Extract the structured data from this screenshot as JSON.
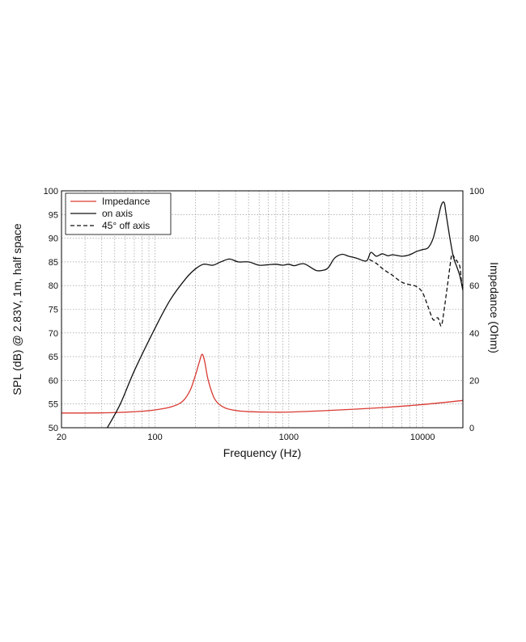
{
  "chart_data": {
    "type": "line",
    "xlabel": "Frequency (Hz)",
    "ylabel_left": "SPL (dB) @ 2.83V, 1m, half space",
    "ylabel_right": "Impedance (Ohm)",
    "x_scale": "log",
    "xlim": [
      20,
      20000
    ],
    "ylim_left": [
      50,
      100
    ],
    "ylim_right": [
      0,
      100
    ],
    "grid": true,
    "legend_position": "top-left",
    "x_ticks": [
      {
        "value": 20,
        "label": "20"
      },
      {
        "value": 100,
        "label": "100"
      },
      {
        "value": 1000,
        "label": "1000"
      },
      {
        "value": 10000,
        "label": "10000"
      }
    ],
    "y_ticks_left": [
      "50",
      "55",
      "60",
      "65",
      "70",
      "75",
      "80",
      "85",
      "90",
      "95",
      "100"
    ],
    "y_ticks_right": [
      "0",
      "20",
      "40",
      "60",
      "80",
      "100"
    ],
    "series": [
      {
        "name": "Impedance",
        "color": "#d93a32",
        "dash": "solid",
        "axis": "right",
        "x": [
          20,
          50,
          100,
          150,
          180,
          200,
          215,
          225,
          235,
          250,
          280,
          330,
          400,
          500,
          700,
          1000,
          2000,
          5000,
          10000,
          20000
        ],
        "y": [
          6.2,
          6.4,
          7.5,
          10,
          15,
          22,
          28,
          31,
          28,
          20,
          12,
          8.5,
          7.3,
          6.8,
          6.6,
          6.6,
          7.3,
          8.5,
          9.8,
          11.5
        ]
      },
      {
        "name": "on axis",
        "color": "#111111",
        "dash": "solid",
        "axis": "left",
        "x": [
          44,
          55,
          70,
          100,
          130,
          170,
          200,
          230,
          270,
          310,
          360,
          420,
          500,
          600,
          700,
          800,
          900,
          1000,
          1100,
          1300,
          1600,
          1850,
          2000,
          2200,
          2500,
          2800,
          3200,
          3800,
          4100,
          4500,
          5000,
          5500,
          6000,
          7000,
          8000,
          9000,
          10000,
          11000,
          12000,
          13000,
          13800,
          14500,
          15000,
          16000,
          17000,
          18000,
          19000,
          20000
        ],
        "y": [
          50,
          55,
          62,
          71,
          77,
          81.5,
          83.5,
          84.5,
          84.3,
          85,
          85.6,
          85,
          85,
          84.3,
          84.4,
          84.5,
          84.3,
          84.5,
          84.2,
          84.6,
          83.2,
          83.3,
          84,
          85.8,
          86.6,
          86.2,
          85.8,
          85.2,
          87,
          86.2,
          86.7,
          86.3,
          86.5,
          86.2,
          86.5,
          87.2,
          87.6,
          88,
          90,
          94,
          97,
          97.5,
          95,
          90,
          86,
          84,
          82,
          79
        ]
      },
      {
        "name": "45° off axis",
        "color": "#111111",
        "dash": "dashed",
        "axis": "left",
        "x": [
          4000,
          4500,
          5000,
          5500,
          6000,
          7000,
          8000,
          9000,
          10000,
          11000,
          12000,
          13000,
          13800,
          14500,
          15000,
          15500,
          16000,
          16500,
          17000,
          17500,
          18000,
          18500,
          19000,
          19500,
          20000
        ],
        "y": [
          85.5,
          84.7,
          83.6,
          82.8,
          82.1,
          80.7,
          80.2,
          79.8,
          78.5,
          75.5,
          72.8,
          73.2,
          71.5,
          75,
          78,
          81,
          84,
          86.5,
          86.3,
          85.4,
          85.3,
          84.5,
          84,
          81,
          79
        ]
      }
    ]
  }
}
